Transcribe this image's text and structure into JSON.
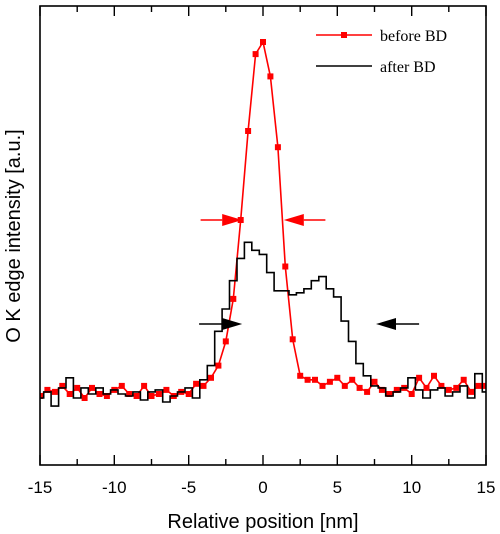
{
  "chart_data": {
    "type": "line",
    "xlabel": "Relative position [nm]",
    "ylabel": "O K edge intensity [a.u.]",
    "xlim": [
      -15,
      15
    ],
    "ylim": [
      0,
      1
    ],
    "xticks": [
      -15,
      -10,
      -5,
      0,
      5,
      10,
      15
    ],
    "grid": false,
    "legend_position": "top-right",
    "series": [
      {
        "name": "before BD",
        "color": "#ff0000",
        "style": "line-square-markers",
        "x": [
          -15.0,
          -14.5,
          -14.0,
          -13.5,
          -13.0,
          -12.5,
          -12.0,
          -11.5,
          -11.0,
          -10.5,
          -10.0,
          -9.5,
          -9.0,
          -8.5,
          -8.0,
          -7.5,
          -7.0,
          -6.5,
          -6.0,
          -5.5,
          -5.0,
          -4.5,
          -4.0,
          -3.5,
          -3.0,
          -2.5,
          -2.0,
          -1.5,
          -1.0,
          -0.5,
          0.0,
          0.5,
          1.0,
          1.5,
          2.0,
          2.5,
          3.0,
          3.5,
          4.0,
          4.5,
          5.0,
          5.5,
          6.0,
          6.5,
          7.0,
          7.5,
          8.0,
          8.5,
          9.0,
          9.5,
          10.0,
          10.5,
          11.0,
          11.5,
          12.0,
          12.5,
          13.0,
          13.5,
          14.0,
          14.5,
          15.0
        ],
        "y": [
          0.125,
          0.14,
          0.135,
          0.15,
          0.13,
          0.145,
          0.12,
          0.145,
          0.13,
          0.125,
          0.14,
          0.15,
          0.13,
          0.125,
          0.15,
          0.125,
          0.13,
          0.14,
          0.125,
          0.135,
          0.13,
          0.155,
          0.15,
          0.17,
          0.2,
          0.26,
          0.365,
          0.56,
          0.78,
          0.97,
          1.0,
          0.915,
          0.74,
          0.445,
          0.265,
          0.175,
          0.165,
          0.165,
          0.15,
          0.16,
          0.17,
          0.15,
          0.165,
          0.145,
          0.135,
          0.16,
          0.14,
          0.13,
          0.14,
          0.145,
          0.13,
          0.17,
          0.145,
          0.175,
          0.15,
          0.14,
          0.145,
          0.165,
          0.135,
          0.15,
          0.15
        ]
      },
      {
        "name": "after BD",
        "color": "#000000",
        "style": "step",
        "x": [
          -15.0,
          -14.5,
          -14.0,
          -13.5,
          -13.0,
          -12.5,
          -12.0,
          -11.5,
          -11.0,
          -10.5,
          -10.0,
          -9.5,
          -9.0,
          -8.5,
          -8.0,
          -7.5,
          -7.0,
          -6.5,
          -6.0,
          -5.5,
          -5.0,
          -4.5,
          -4.0,
          -3.5,
          -3.0,
          -2.5,
          -2.0,
          -1.5,
          -1.0,
          -0.5,
          0.0,
          0.5,
          1.0,
          1.5,
          2.0,
          2.5,
          3.0,
          3.5,
          4.0,
          4.5,
          5.0,
          5.5,
          6.0,
          6.5,
          7.0,
          7.5,
          8.0,
          8.5,
          9.0,
          9.5,
          10.0,
          10.5,
          11.0,
          11.5,
          12.0,
          12.5,
          13.0,
          13.5,
          14.0,
          14.5,
          15.0
        ],
        "y": [
          0.12,
          0.135,
          0.1,
          0.145,
          0.17,
          0.12,
          0.145,
          0.13,
          0.145,
          0.13,
          0.14,
          0.13,
          0.125,
          0.135,
          0.115,
          0.135,
          0.14,
          0.11,
          0.125,
          0.135,
          0.145,
          0.12,
          0.165,
          0.2,
          0.285,
          0.34,
          0.41,
          0.465,
          0.505,
          0.485,
          0.475,
          0.43,
          0.385,
          0.385,
          0.375,
          0.38,
          0.39,
          0.41,
          0.42,
          0.39,
          0.37,
          0.31,
          0.26,
          0.205,
          0.175,
          0.15,
          0.145,
          0.125,
          0.135,
          0.145,
          0.17,
          0.14,
          0.12,
          0.14,
          0.145,
          0.125,
          0.135,
          0.15,
          0.12,
          0.18,
          0.135
        ]
      }
    ],
    "annotations": [
      {
        "name": "fwhm-before-left-arrow",
        "color": "#ff0000",
        "direction": "right",
        "x_from": -4.2,
        "x_to": -1.4,
        "y": 0.56
      },
      {
        "name": "fwhm-before-right-arrow",
        "color": "#ff0000",
        "direction": "left",
        "x_from": 4.2,
        "x_to": 1.4,
        "y": 0.56
      },
      {
        "name": "fwhm-after-left-arrow",
        "color": "#000000",
        "direction": "right",
        "x_from": -4.3,
        "x_to": -1.4,
        "y": 0.303
      },
      {
        "name": "fwhm-after-right-arrow",
        "color": "#000000",
        "direction": "left",
        "x_from": 10.5,
        "x_to": 7.6,
        "y": 0.303
      }
    ]
  }
}
